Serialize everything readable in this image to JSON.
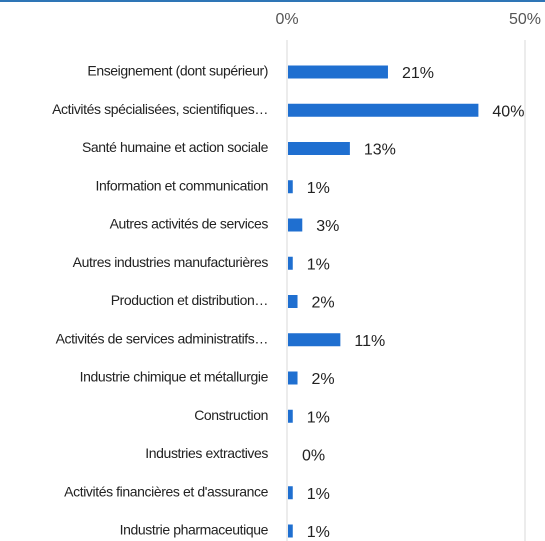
{
  "chart_data": {
    "type": "bar",
    "orientation": "horizontal",
    "categories": [
      "Enseignement (dont supérieur)",
      "Activités spécialisées, scientifiques…",
      "Santé humaine et action sociale",
      "Information et communication",
      "Autres activités de services",
      "Autres industries manufacturières",
      "Production et distribution…",
      "Activités de services administratifs…",
      "Industrie chimique et métallurgie",
      "Construction",
      "Industries extractives",
      "Activités financières et d'assurance",
      "Industrie pharmaceutique"
    ],
    "values": [
      21,
      40,
      13,
      1,
      3,
      1,
      2,
      11,
      2,
      1,
      0,
      1,
      1
    ],
    "value_labels": [
      "21%",
      "40%",
      "13%",
      "1%",
      "3%",
      "1%",
      "2%",
      "11%",
      "2%",
      "1%",
      "0%",
      "1%",
      "1%"
    ],
    "color": "#1f6fd0",
    "xlim": [
      0,
      50
    ],
    "xticks": [
      {
        "value": 0,
        "label": "0%"
      },
      {
        "value": 50,
        "label": "50%"
      }
    ],
    "grid": true
  }
}
